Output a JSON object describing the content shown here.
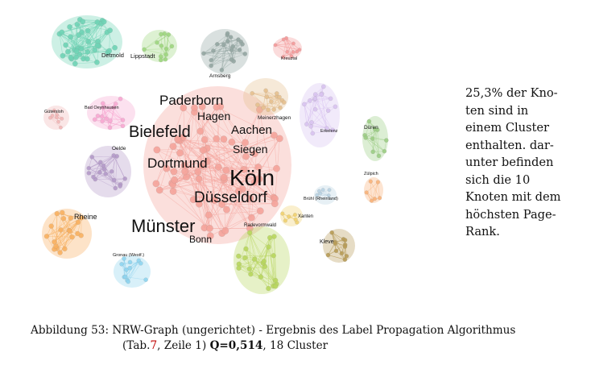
{
  "figure": {
    "clusters": [
      {
        "id": "koeln",
        "color": "#f4a39a"
      },
      {
        "id": "detmold",
        "color": "#6fd3b5"
      },
      {
        "id": "lippstadt",
        "color": "#9ed67f"
      },
      {
        "id": "arnsberg",
        "color": "#93a6a2"
      },
      {
        "id": "kreuztal",
        "color": "#f49a9a"
      },
      {
        "id": "guetersloh",
        "color": "#f2b7b7"
      },
      {
        "id": "badoeynhausen",
        "color": "#f7a8d2"
      },
      {
        "id": "oelde",
        "color": "#b49ac9"
      },
      {
        "id": "rheine",
        "color": "#f8b060"
      },
      {
        "id": "gronau",
        "color": "#8fd4ee"
      },
      {
        "id": "meinerzhagen",
        "color": "#e6c08f"
      },
      {
        "id": "erkelenz",
        "color": "#d8c3f0"
      },
      {
        "id": "dueren",
        "color": "#9ccd85"
      },
      {
        "id": "zuelpich",
        "color": "#f8b27a"
      },
      {
        "id": "bruehl",
        "color": "#b9d3e3"
      },
      {
        "id": "xanten",
        "color": "#f0d070"
      },
      {
        "id": "kleve",
        "color": "#b89c58"
      },
      {
        "id": "radevormwald",
        "color": "#b8d65e"
      }
    ],
    "labels": {
      "detmold": "Detmold",
      "lippstadt": "Lippstadt",
      "arnsberg": "Arnsberg",
      "kreuztal": "Kreuztal",
      "guetersloh": "Gütersloh",
      "badoeynhausen": "Bad Oeynhausen",
      "oelde": "Oelde",
      "rheine": "Rheine",
      "gronau": "Gronau (Westf.)",
      "paderborn": "Paderborn",
      "hagen": "Hagen",
      "bielefeld": "Bielefeld",
      "aachen": "Aachen",
      "siegen": "Siegen",
      "dortmund": "Dortmund",
      "koeln": "Köln",
      "duesseldorf": "Düsseldorf",
      "muenster": "Münster",
      "bonn": "Bonn",
      "meinerzhagen": "Meinerzhagen",
      "erkelenz": "Erkelenz",
      "dueren": "Düren",
      "zuelpich": "Zülpich",
      "bruehl": "Brühl (Rheinland)",
      "xanten": "Xanten",
      "radevormwald": "Radevormwald",
      "kleve": "Kleve"
    }
  },
  "side_text": "25,3% der Kno-\nten sind in\neinem Cluster\nenthalten. dar-\nunter befinden\nsich die 10\nKnoten mit dem\nhöchsten Page-\nRank.",
  "caption": {
    "line1": "Abbildung 53: NRW-Graph (ungerichtet) - Ergebnis des Label Propagation Algorithmus",
    "line2_open": "(Tab.",
    "line2_ref": "7",
    "line2_mid": ", Zeile 1) ",
    "line2_bold": "Q=0,514",
    "line2_end": ", 18 Cluster"
  }
}
